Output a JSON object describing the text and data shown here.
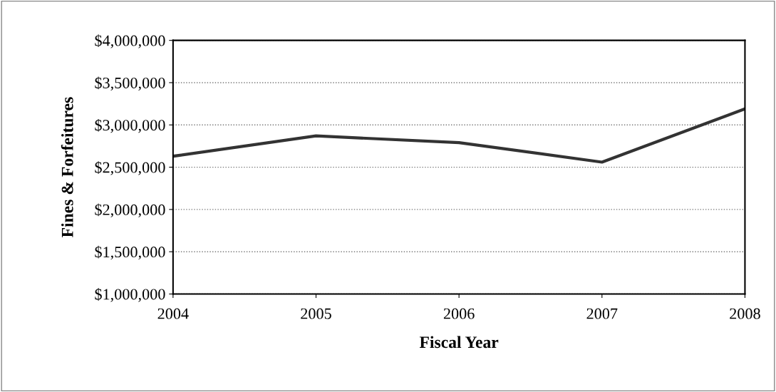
{
  "chart_data": {
    "type": "line",
    "xlabel": "Fiscal Year",
    "ylabel": "Fines & Forfeitures",
    "x": [
      2004,
      2005,
      2006,
      2007,
      2008
    ],
    "series": [
      {
        "color": "#333333",
        "values": [
          2630000,
          2870000,
          2790000,
          2560000,
          3190000
        ]
      }
    ],
    "xlim": [
      2004,
      2008
    ],
    "xticks": [
      2004,
      2005,
      2006,
      2007,
      2008
    ],
    "ylim": [
      1000000,
      4000000
    ],
    "yticks": [
      {
        "value": 1000000,
        "label": "$1,000,000"
      },
      {
        "value": 1500000,
        "label": "$1,500,000"
      },
      {
        "value": 2000000,
        "label": "$2,000,000"
      },
      {
        "value": 2500000,
        "label": "$2,500,000"
      },
      {
        "value": 3000000,
        "label": "$3,000,000"
      },
      {
        "value": 3500000,
        "label": "$3,500,000"
      },
      {
        "value": 4000000,
        "label": "$4,000,000"
      }
    ],
    "grid": "y",
    "line_style": "solid",
    "marker": "none"
  }
}
